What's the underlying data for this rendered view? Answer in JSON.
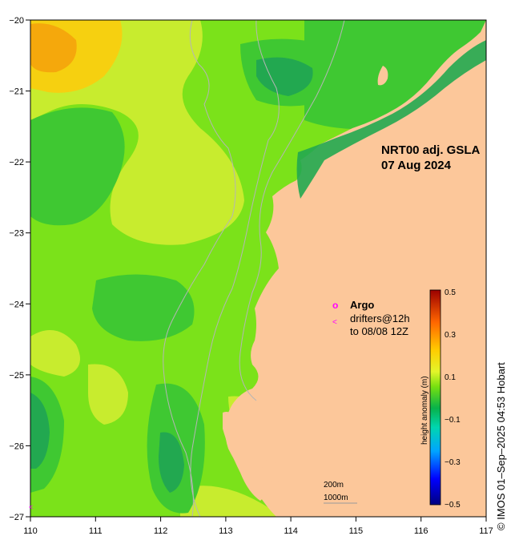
{
  "map": {
    "title_line1": "NRT00 adj. GSLA",
    "title_line2": "07 Aug 2024",
    "credit": "© IMOS 01–Sep–2025 04:53 Hobart",
    "lon_ticks": [
      "110",
      "111",
      "112",
      "113",
      "114",
      "115",
      "116",
      "117"
    ],
    "lat_ticks": [
      "−20",
      "−21",
      "−22",
      "−23",
      "−24",
      "−25",
      "−26",
      "−27"
    ],
    "lon_range": [
      110,
      117
    ],
    "lat_range": [
      -27,
      -20
    ],
    "land_color": "#fcc79a",
    "contour_color": "#b5b5b5"
  },
  "legend": {
    "argo_symbol": "o",
    "argo_label": "Argo",
    "drifter_symbol": "<",
    "drifter_label_line1": "drifters@12h",
    "drifter_label_line2": "to 08/08 12Z",
    "marker_color": "#ff00ff"
  },
  "colorbar": {
    "label": "height anomaly (m)",
    "ticks": [
      "0.5",
      "0.3",
      "0.1",
      "−0.1",
      "−0.3",
      "−0.5"
    ],
    "range": [
      -0.5,
      0.5
    ]
  },
  "scale_bar": {
    "line1": "200m",
    "line2": "1000m"
  }
}
